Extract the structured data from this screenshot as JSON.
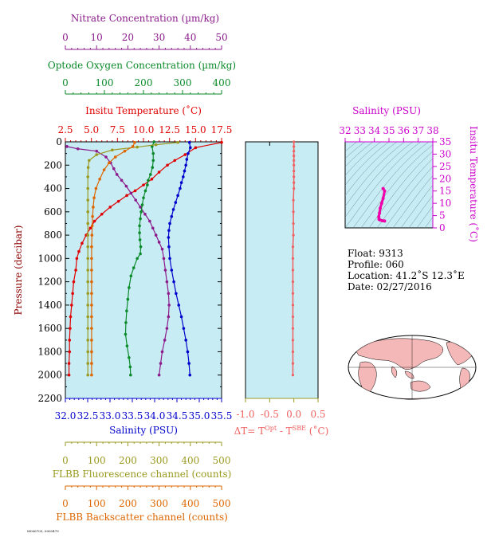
{
  "colors": {
    "nitrate": "#8b1a8b",
    "oxygen": "#0a8a2a",
    "temperature": "#e00000",
    "salinity": "#0000cc",
    "fluorescence": "#9a9a20",
    "backscatter": "#dd6600",
    "delta_t": "#f06060",
    "ts_axis": "#cc00cc",
    "ts_trace": "#ee00aa",
    "panel_bg": "#c8ecf4",
    "axis": "#000000"
  },
  "top_axes": {
    "nitrate": {
      "label": "Nitrate Concentration (µm/kg)",
      "ticks": [
        "0",
        "10",
        "20",
        "30",
        "40",
        "50"
      ],
      "range": [
        0,
        50
      ]
    },
    "oxygen": {
      "label": "Optode Oxygen Concentration (µm/kg)",
      "ticks": [
        "0",
        "100",
        "200",
        "300",
        "400"
      ],
      "range": [
        0,
        400
      ]
    },
    "temperature": {
      "label": "Insitu Temperature (˚C)",
      "ticks": [
        "2.5",
        "5.0",
        "7.5",
        "10.0",
        "12.5",
        "15.0",
        "17.5"
      ],
      "range": [
        2.5,
        17.5
      ]
    }
  },
  "bottom_axes": {
    "salinity": {
      "label": "Salinity (PSU)",
      "ticks": [
        "32.0",
        "32.5",
        "33.0",
        "33.5",
        "34.0",
        "34.5",
        "35.0",
        "35.5"
      ],
      "range": [
        32.0,
        35.5
      ]
    },
    "fluorescence": {
      "label": "FLBB Fluorescence channel (counts)",
      "ticks": [
        "0",
        "100",
        "200",
        "300",
        "400",
        "500"
      ],
      "range": [
        0,
        500
      ]
    },
    "backscatter": {
      "label": "FLBB Backscatter channel (counts)",
      "ticks": [
        "0",
        "100",
        "200",
        "300",
        "400",
        "500"
      ],
      "range": [
        0,
        500
      ]
    }
  },
  "pressure_axis": {
    "label": "Pressure (decibar)",
    "ticks": [
      "0",
      "200",
      "400",
      "600",
      "800",
      "1000",
      "1200",
      "1400",
      "1600",
      "1800",
      "2000",
      "2200"
    ],
    "range": [
      0,
      2200
    ]
  },
  "delta_t_axis": {
    "label_prefix": "ΔT= T",
    "sup1": "Opt",
    "mid": " - T",
    "sup2": "SBE",
    "units": " (˚C)",
    "ticks": [
      "-1.0",
      "-0.5",
      "0.0",
      "0.5"
    ],
    "range": [
      -1.0,
      0.5
    ]
  },
  "ts_diagram": {
    "title": "Salinity (PSU)",
    "xticks": [
      "32",
      "33",
      "34",
      "35",
      "36",
      "37",
      "38"
    ],
    "xrange": [
      32,
      38
    ],
    "ylabel": "Insitu Temperature (˚C)",
    "yticks": [
      "0",
      "5",
      "10",
      "15",
      "20",
      "25",
      "30",
      "35"
    ],
    "yrange": [
      0,
      35
    ]
  },
  "info": {
    "float": "Float:  9313",
    "profile": "Profile:  060",
    "location": "Location:  41.2˚S  12.3˚E",
    "date": "Date:  02/27/2016"
  },
  "footer_text": "M006705, 0000479",
  "chart_data": {
    "type": "line",
    "y_variable": "pressure (decibar)",
    "series": [
      {
        "name": "Insitu Temperature (˚C)",
        "key": "temperature",
        "points": [
          [
            17.5,
            5
          ],
          [
            15.0,
            50
          ],
          [
            14.0,
            110
          ],
          [
            13.0,
            160
          ],
          [
            12.3,
            200
          ],
          [
            11.5,
            260
          ],
          [
            10.8,
            320
          ],
          [
            10.0,
            370
          ],
          [
            9.2,
            420
          ],
          [
            8.4,
            460
          ],
          [
            7.6,
            510
          ],
          [
            6.8,
            560
          ],
          [
            6.0,
            620
          ],
          [
            5.3,
            680
          ],
          [
            4.9,
            740
          ],
          [
            4.5,
            800
          ],
          [
            4.1,
            870
          ],
          [
            3.8,
            940
          ],
          [
            3.6,
            1000
          ],
          [
            3.5,
            1100
          ],
          [
            3.3,
            1200
          ],
          [
            3.2,
            1300
          ],
          [
            3.1,
            1400
          ],
          [
            3.0,
            1500
          ],
          [
            2.95,
            1600
          ],
          [
            2.9,
            1700
          ],
          [
            2.9,
            1800
          ],
          [
            2.85,
            1900
          ],
          [
            2.85,
            2000
          ]
        ]
      },
      {
        "name": "Salinity (PSU)",
        "key": "salinity",
        "points": [
          [
            34.78,
            5
          ],
          [
            34.8,
            50
          ],
          [
            34.75,
            100
          ],
          [
            34.72,
            150
          ],
          [
            34.7,
            200
          ],
          [
            34.67,
            250
          ],
          [
            34.64,
            300
          ],
          [
            34.6,
            350
          ],
          [
            34.57,
            400
          ],
          [
            34.52,
            460
          ],
          [
            34.47,
            520
          ],
          [
            34.42,
            580
          ],
          [
            34.38,
            640
          ],
          [
            34.34,
            700
          ],
          [
            34.32,
            760
          ],
          [
            34.31,
            820
          ],
          [
            34.32,
            900
          ],
          [
            34.34,
            1000
          ],
          [
            34.38,
            1100
          ],
          [
            34.43,
            1200
          ],
          [
            34.48,
            1300
          ],
          [
            34.54,
            1400
          ],
          [
            34.6,
            1500
          ],
          [
            34.65,
            1600
          ],
          [
            34.7,
            1700
          ],
          [
            34.74,
            1800
          ],
          [
            34.77,
            1900
          ],
          [
            34.79,
            2000
          ]
        ]
      },
      {
        "name": "Nitrate Concentration (µm/kg)",
        "key": "nitrate",
        "points": [
          [
            0.5,
            40
          ],
          [
            4,
            60
          ],
          [
            10,
            80
          ],
          [
            13,
            130
          ],
          [
            14.5,
            180
          ],
          [
            15.5,
            230
          ],
          [
            16.5,
            280
          ],
          [
            18,
            330
          ],
          [
            19.5,
            380
          ],
          [
            21,
            440
          ],
          [
            22.5,
            500
          ],
          [
            24,
            560
          ],
          [
            25.5,
            620
          ],
          [
            27,
            680
          ],
          [
            28,
            740
          ],
          [
            29,
            800
          ],
          [
            30,
            860
          ],
          [
            31,
            920
          ],
          [
            31.5,
            1000
          ],
          [
            32,
            1100
          ],
          [
            32.5,
            1200
          ],
          [
            33,
            1300
          ],
          [
            33.2,
            1400
          ],
          [
            33,
            1500
          ],
          [
            32.5,
            1600
          ],
          [
            31.8,
            1700
          ],
          [
            31,
            1800
          ],
          [
            30.5,
            1900
          ],
          [
            30,
            2000
          ]
        ]
      },
      {
        "name": "Optode Oxygen Concentration (µm/kg)",
        "key": "oxygen",
        "points": [
          [
            227,
            0
          ],
          [
            222,
            40
          ],
          [
            225,
            100
          ],
          [
            225,
            160
          ],
          [
            223,
            220
          ],
          [
            218,
            280
          ],
          [
            212,
            330
          ],
          [
            210,
            370
          ],
          [
            205,
            420
          ],
          [
            200,
            480
          ],
          [
            197,
            540
          ],
          [
            194,
            600
          ],
          [
            192,
            660
          ],
          [
            190,
            720
          ],
          [
            190,
            780
          ],
          [
            191,
            840
          ],
          [
            193,
            900
          ],
          [
            192,
            960
          ],
          [
            184,
            1000
          ],
          [
            175,
            1080
          ],
          [
            168,
            1150
          ],
          [
            163,
            1250
          ],
          [
            160,
            1350
          ],
          [
            157,
            1450
          ],
          [
            155,
            1550
          ],
          [
            154,
            1650
          ],
          [
            158,
            1750
          ],
          [
            163,
            1850
          ],
          [
            166,
            1930
          ],
          [
            167,
            2000
          ]
        ]
      },
      {
        "name": "FLBB Fluorescence channel (counts)",
        "key": "fluorescence",
        "points": [
          [
            360,
            5
          ],
          [
            290,
            25
          ],
          [
            230,
            45
          ],
          [
            150,
            70
          ],
          [
            100,
            110
          ],
          [
            76,
            160
          ],
          [
            73,
            220
          ],
          [
            72,
            300
          ],
          [
            72,
            400
          ],
          [
            72,
            500
          ],
          [
            72,
            600
          ],
          [
            72,
            700
          ],
          [
            72,
            800
          ],
          [
            72,
            900
          ],
          [
            72,
            1000
          ],
          [
            72,
            1100
          ],
          [
            72,
            1200
          ],
          [
            72,
            1300
          ],
          [
            72,
            1400
          ],
          [
            72,
            1500
          ],
          [
            72,
            1600
          ],
          [
            72,
            1700
          ],
          [
            72,
            1800
          ],
          [
            72,
            1900
          ],
          [
            72,
            2000
          ]
        ]
      },
      {
        "name": "FLBB Backscatter channel (counts)",
        "key": "backscatter",
        "points": [
          [
            222,
            5
          ],
          [
            216,
            40
          ],
          [
            190,
            80
          ],
          [
            160,
            130
          ],
          [
            140,
            180
          ],
          [
            124,
            240
          ],
          [
            110,
            320
          ],
          [
            98,
            400
          ],
          [
            92,
            480
          ],
          [
            89,
            560
          ],
          [
            87,
            640
          ],
          [
            86,
            720
          ],
          [
            85,
            800
          ],
          [
            84,
            900
          ],
          [
            84,
            1000
          ],
          [
            84,
            1100
          ],
          [
            84,
            1200
          ],
          [
            84,
            1300
          ],
          [
            84,
            1400
          ],
          [
            84,
            1500
          ],
          [
            84,
            1600
          ],
          [
            84,
            1700
          ],
          [
            84,
            1800
          ],
          [
            84,
            1900
          ],
          [
            84,
            2000
          ]
        ]
      },
      {
        "name": "ΔT",
        "key": "delta_t",
        "points": [
          [
            0.0,
            0
          ],
          [
            0.0,
            40
          ],
          [
            0.0,
            80
          ],
          [
            0.0,
            120
          ],
          [
            0.0,
            160
          ],
          [
            0.0,
            200
          ],
          [
            0.0,
            250
          ],
          [
            0.0,
            300
          ],
          [
            0.0,
            350
          ],
          [
            0.0,
            400
          ],
          [
            -0.01,
            500
          ],
          [
            -0.01,
            600
          ],
          [
            -0.01,
            700
          ],
          [
            -0.01,
            800
          ],
          [
            -0.02,
            900
          ],
          [
            -0.02,
            1000
          ],
          [
            -0.02,
            1100
          ],
          [
            -0.02,
            1200
          ],
          [
            -0.02,
            1300
          ],
          [
            -0.02,
            1400
          ],
          [
            -0.02,
            1500
          ],
          [
            -0.02,
            1600
          ],
          [
            -0.02,
            1700
          ],
          [
            -0.02,
            1800
          ],
          [
            -0.02,
            1900
          ],
          [
            -0.02,
            2000
          ]
        ]
      }
    ],
    "ts_series": {
      "name": "T-S",
      "points": [
        [
          34.6,
          16.0
        ],
        [
          34.7,
          15.0
        ],
        [
          34.6,
          12.0
        ],
        [
          34.5,
          10.0
        ],
        [
          34.4,
          8.0
        ],
        [
          34.35,
          6.0
        ],
        [
          34.3,
          4.5
        ],
        [
          34.32,
          3.5
        ],
        [
          34.4,
          3.2
        ],
        [
          34.55,
          2.9
        ],
        [
          34.7,
          2.8
        ]
      ]
    }
  }
}
